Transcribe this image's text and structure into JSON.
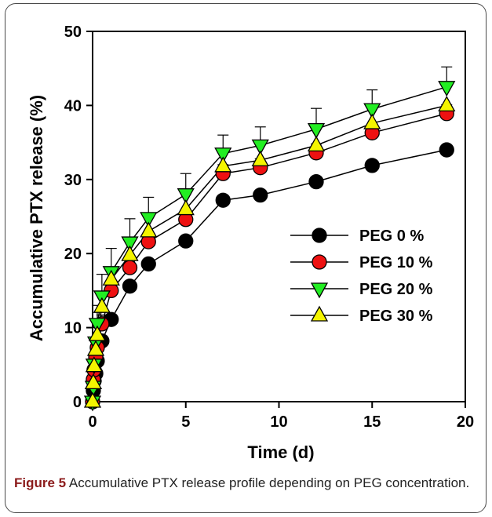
{
  "caption": {
    "label": "Figure 5",
    "text": "Accumulative PTX release profile depending on PEG concentration."
  },
  "chart_data": {
    "type": "scatter",
    "xlabel": "Time (d)",
    "ylabel": "Accumulative PTX release (%)",
    "xlim": [
      0,
      20
    ],
    "ylim": [
      0,
      50
    ],
    "xticks": [
      0,
      5,
      10,
      15,
      20
    ],
    "yticks": [
      0,
      10,
      20,
      30,
      40,
      50
    ],
    "grid": false,
    "legend_position": "bottom-right",
    "lines_connected": true,
    "series": [
      {
        "name": "PEG 0 %",
        "marker": "circle",
        "color": "#000000",
        "x": [
          0,
          0.04,
          0.08,
          0.17,
          0.25,
          0.5,
          1,
          2,
          3,
          5,
          7,
          9,
          12,
          15,
          19
        ],
        "y": [
          0,
          1.5,
          2.8,
          3.8,
          5.5,
          8.2,
          11.1,
          15.6,
          18.6,
          21.7,
          27.2,
          27.9,
          29.7,
          31.9,
          34.0
        ],
        "err": [
          0,
          0,
          0,
          0,
          0,
          0,
          0,
          0,
          0,
          0,
          0,
          0,
          0,
          0,
          0
        ]
      },
      {
        "name": "PEG 10 %",
        "marker": "circle",
        "color": "#ee1111",
        "x": [
          0,
          0.04,
          0.08,
          0.17,
          0.25,
          0.5,
          1,
          2,
          3,
          5,
          7,
          9,
          12,
          15,
          19
        ],
        "y": [
          0,
          3.0,
          4.3,
          6.0,
          7.3,
          10.5,
          15.0,
          18.1,
          21.6,
          24.6,
          30.8,
          31.6,
          33.6,
          36.3,
          38.9
        ],
        "err": [
          0,
          0.8,
          1.0,
          1.0,
          1.2,
          1.2,
          1.2,
          1.2,
          1.2,
          1.2,
          1.2,
          1.2,
          1.2,
          1.2,
          1.2
        ]
      },
      {
        "name": "PEG 20 %",
        "marker": "triangle-down",
        "color": "#22ee22",
        "x": [
          0,
          0.04,
          0.08,
          0.17,
          0.25,
          0.5,
          1,
          2,
          3,
          5,
          7,
          9,
          12,
          15,
          19
        ],
        "y": [
          0,
          2.0,
          5.0,
          8.0,
          10.5,
          14.2,
          17.5,
          21.5,
          24.8,
          28.0,
          33.5,
          34.6,
          36.8,
          39.5,
          42.5
        ],
        "err": [
          0,
          1.0,
          1.5,
          2.0,
          2.5,
          3.0,
          3.2,
          3.2,
          2.8,
          2.8,
          2.5,
          2.5,
          2.8,
          2.6,
          2.7
        ]
      },
      {
        "name": "PEG 30 %",
        "marker": "triangle-up",
        "color": "#f4f400",
        "x": [
          0,
          0.04,
          0.08,
          0.17,
          0.25,
          0.5,
          1,
          2,
          3,
          5,
          7,
          9,
          12,
          15,
          19
        ],
        "y": [
          0,
          2.5,
          4.8,
          7.0,
          9.0,
          12.8,
          16.5,
          19.8,
          23.0,
          26.0,
          31.8,
          32.6,
          34.6,
          37.6,
          40.0
        ],
        "err": [
          0,
          0,
          0,
          0,
          0,
          0,
          0,
          0,
          0,
          0,
          0,
          0,
          0,
          0,
          0
        ]
      }
    ]
  }
}
